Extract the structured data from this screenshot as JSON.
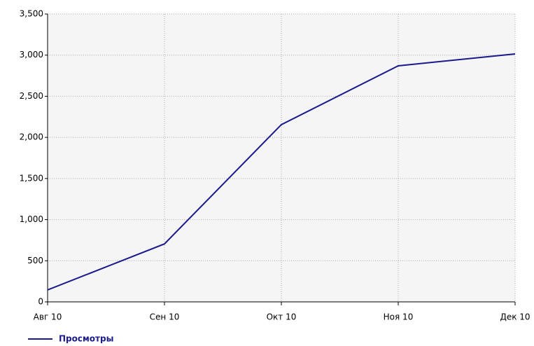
{
  "chart_data": {
    "type": "line",
    "categories": [
      "Авг 10",
      "Сен 10",
      "Окт 10",
      "Ноя 10",
      "Дек 10"
    ],
    "series": [
      {
        "name": "Просмотры",
        "color": "#1a1a8c",
        "values": [
          145,
          705,
          2155,
          2870,
          3015
        ]
      }
    ],
    "ylim": [
      0,
      3500
    ],
    "yticks": [
      0,
      500,
      {
        "value": 1000,
        "label": "1,000"
      },
      {
        "value": 1500,
        "label": "1,500"
      },
      {
        "value": 2000,
        "label": "2,000"
      },
      {
        "value": 2500,
        "label": "2,500"
      },
      {
        "value": 3000,
        "label": "3,000"
      },
      {
        "value": 3500,
        "label": "3,500"
      }
    ],
    "grid": true
  }
}
